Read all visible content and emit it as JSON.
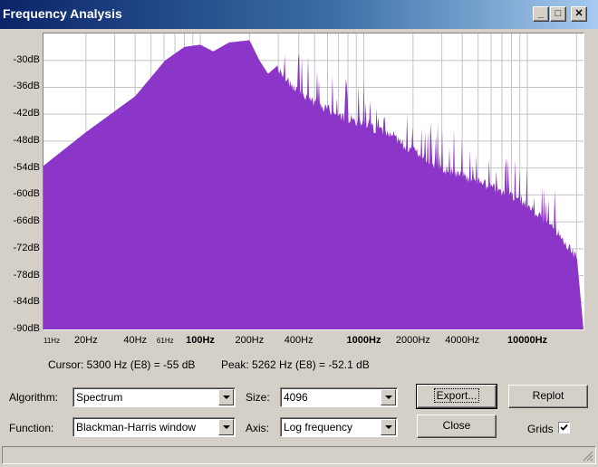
{
  "window": {
    "title": "Frequency Analysis",
    "buttons": {
      "minimize": "_",
      "maximize": "□",
      "close": "✕"
    }
  },
  "plot": {
    "y_ticks": [
      "-30dB",
      "-36dB",
      "-42dB",
      "-48dB",
      "-54dB",
      "-60dB",
      "-66dB",
      "-72dB",
      "-78dB",
      "-84dB",
      "-90dB"
    ],
    "x_labels": [
      "11Hz",
      "20Hz",
      "40Hz",
      "61Hz",
      "100Hz",
      "200Hz",
      "400Hz",
      "1000Hz",
      "2000Hz",
      "4000Hz",
      "10000Hz"
    ],
    "fill_color": "#8b35c9",
    "grid_color": "#c4c4c4"
  },
  "chart_data": {
    "type": "area",
    "xscale": "log",
    "xlim": [
      11,
      22050
    ],
    "ylim": [
      -90,
      -24
    ],
    "x": [
      11,
      20,
      40,
      61,
      80,
      100,
      120,
      150,
      200,
      230,
      260,
      300,
      350,
      400,
      500,
      700,
      1000,
      1500,
      2000,
      3000,
      4000,
      6000,
      8000,
      10000,
      15000,
      20000,
      22050
    ],
    "values": [
      -53.5,
      -46,
      -38,
      -30,
      -27,
      -26.5,
      -28,
      -26,
      -25.5,
      -30,
      -33,
      -31,
      -34,
      -36,
      -38,
      -41,
      -43,
      -46,
      -49,
      -53,
      -54.5,
      -57,
      -59,
      -61,
      -67,
      -73,
      -90
    ]
  },
  "readouts": {
    "cursor": "Cursor: 5300 Hz (E8) = -55 dB",
    "peak": "Peak: 5262 Hz (E8) = -52.1 dB"
  },
  "controls": {
    "algorithm_label": "Algorithm:",
    "algorithm_value": "Spectrum",
    "function_label": "Function:",
    "function_value": "Blackman-Harris window",
    "size_label": "Size:",
    "size_value": "4096",
    "axis_label": "Axis:",
    "axis_value": "Log frequency",
    "export_label": "Export...",
    "close_label": "Close",
    "replot_label": "Replot",
    "grids_label": "Grids",
    "grids_checked": true
  }
}
